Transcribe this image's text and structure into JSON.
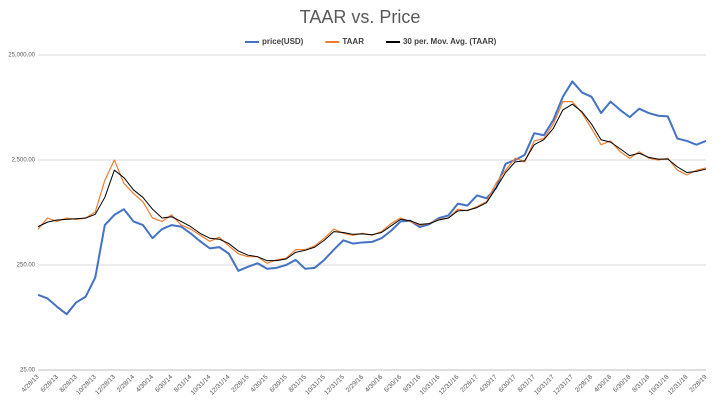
{
  "chart_data": {
    "type": "line",
    "title": "TAAR vs. Price",
    "categories": [
      "4/28/13",
      null,
      "6/28/13",
      null,
      "8/28/13",
      null,
      "10/28/13",
      null,
      "12/28/13",
      null,
      "2/28/14",
      null,
      "4/30/14",
      null,
      "6/30/14",
      null,
      "8/31/14",
      null,
      "10/31/14",
      null,
      "12/31/14",
      null,
      "2/28/15",
      null,
      "4/30/15",
      null,
      "6/30/15",
      null,
      "8/31/15",
      null,
      "10/31/15",
      null,
      "12/31/15",
      null,
      "2/29/16",
      null,
      "4/30/16",
      null,
      "6/30/16",
      null,
      "8/31/16",
      null,
      "10/31/16",
      null,
      "12/31/16",
      null,
      "2/28/17",
      null,
      "4/30/17",
      null,
      "6/30/17",
      null,
      "8/31/17",
      null,
      "10/31/17",
      null,
      "12/31/17",
      null,
      "2/28/18",
      null,
      "4/30/18",
      null,
      "6/30/18",
      null,
      "8/31/18",
      null,
      "10/31/18",
      null,
      "12/31/18",
      null,
      "2/28/19"
    ],
    "series": [
      {
        "name": "price(USD)",
        "color": "#4472c4",
        "width": 2,
        "values": [
          130,
          120,
          100,
          85,
          110,
          125,
          190,
          600,
          750,
          850,
          650,
          600,
          450,
          550,
          600,
          580,
          500,
          420,
          360,
          370,
          320,
          220,
          240,
          260,
          230,
          235,
          250,
          280,
          230,
          235,
          280,
          350,
          430,
          400,
          410,
          415,
          450,
          530,
          650,
          660,
          575,
          610,
          700,
          740,
          960,
          920,
          1150,
          1080,
          1350,
          2300,
          2500,
          2800,
          4500,
          4300,
          6000,
          10000,
          14000,
          11000,
          10000,
          7000,
          9000,
          7500,
          6400,
          7700,
          7000,
          6600,
          6500,
          4000,
          3800,
          3500,
          3800
        ]
      },
      {
        "name": "TAAR",
        "color": "#ed7d31",
        "width": 1.2,
        "values": [
          550,
          700,
          650,
          700,
          680,
          700,
          800,
          1600,
          2500,
          1500,
          1200,
          1000,
          700,
          650,
          750,
          600,
          550,
          480,
          420,
          460,
          380,
          320,
          300,
          300,
          260,
          280,
          290,
          350,
          350,
          380,
          450,
          550,
          500,
          480,
          500,
          480,
          520,
          620,
          700,
          650,
          600,
          620,
          680,
          700,
          850,
          820,
          900,
          1000,
          1500,
          2000,
          2600,
          2400,
          3800,
          4000,
          5500,
          9000,
          9000,
          7000,
          5000,
          3500,
          3800,
          3000,
          2600,
          3000,
          2600,
          2500,
          2600,
          2000,
          1800,
          2000,
          2100
        ]
      },
      {
        "name": "30 per. Mov. Avg. (TAAR)",
        "color": "#000000",
        "width": 1,
        "values": [
          580,
          640,
          670,
          680,
          690,
          700,
          760,
          1100,
          2000,
          1700,
          1300,
          1100,
          850,
          700,
          720,
          650,
          580,
          500,
          450,
          440,
          400,
          340,
          310,
          300,
          275,
          275,
          285,
          330,
          345,
          370,
          430,
          520,
          510,
          490,
          495,
          485,
          510,
          590,
          680,
          660,
          610,
          620,
          670,
          700,
          820,
          830,
          880,
          980,
          1350,
          1900,
          2400,
          2450,
          3500,
          3900,
          5000,
          7500,
          8500,
          7200,
          5500,
          3900,
          3700,
          3200,
          2750,
          2900,
          2650,
          2550,
          2550,
          2150,
          1900,
          1950,
          2050
        ]
      }
    ],
    "log_y": true,
    "ylim": [
      25,
      25000
    ],
    "yticks": [
      {
        "value": 25,
        "label": "25.00"
      },
      {
        "value": 250,
        "label": "250.00"
      },
      {
        "value": 2500,
        "label": "2,500.00"
      },
      {
        "value": 25000,
        "label": "25,000.00"
      }
    ],
    "grid": true,
    "legend": "top"
  }
}
